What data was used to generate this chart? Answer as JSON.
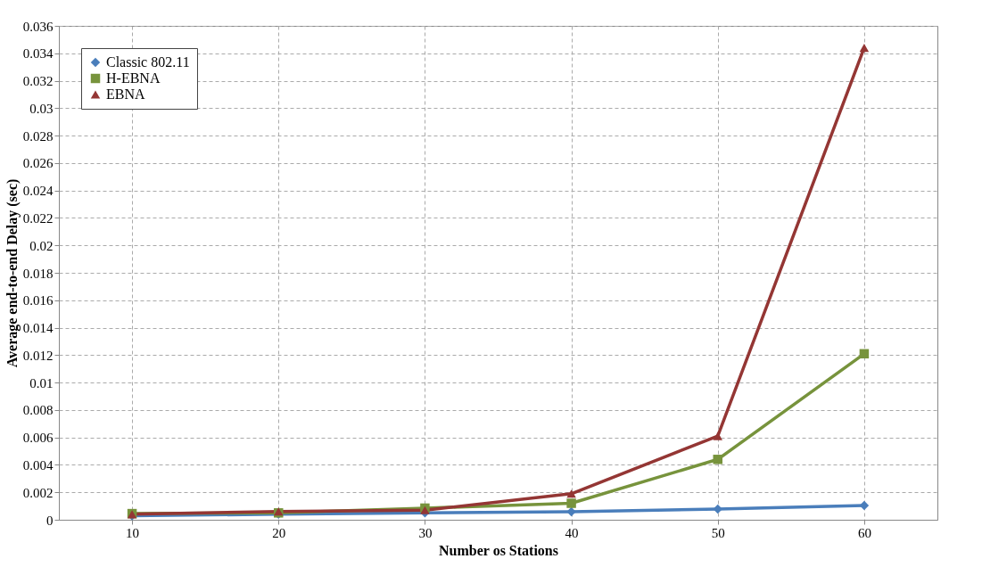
{
  "chart_data": {
    "type": "line",
    "xlabel": "Number os Stations",
    "ylabel": "Average end-to-end  Delay (sec)",
    "categories": [
      "10",
      "20",
      "30",
      "40",
      "50",
      "60"
    ],
    "series": [
      {
        "name": "Classic 802.11",
        "color": "#4a7ebb",
        "marker": "diamond",
        "values": [
          0.0003,
          0.0004,
          0.0005,
          0.00058,
          0.00078,
          0.00104
        ]
      },
      {
        "name": "H-EBNA",
        "color": "#77933c",
        "marker": "square",
        "values": [
          0.00045,
          0.0005,
          0.00085,
          0.0012,
          0.0044,
          0.0121
        ]
      },
      {
        "name": "EBNA",
        "color": "#943634",
        "marker": "triangle",
        "values": [
          0.0004,
          0.0006,
          0.0007,
          0.0019,
          0.0061,
          0.0344
        ]
      }
    ],
    "ylim": [
      0,
      0.036
    ],
    "yticks": [
      0,
      0.002,
      0.004,
      0.006,
      0.008,
      0.01,
      0.012,
      0.014,
      0.016,
      0.018,
      0.02,
      0.022,
      0.024,
      0.026,
      0.028,
      0.03,
      0.032,
      0.034,
      0.036
    ],
    "grid": true,
    "legend": "top left",
    "line_style": "solid"
  }
}
